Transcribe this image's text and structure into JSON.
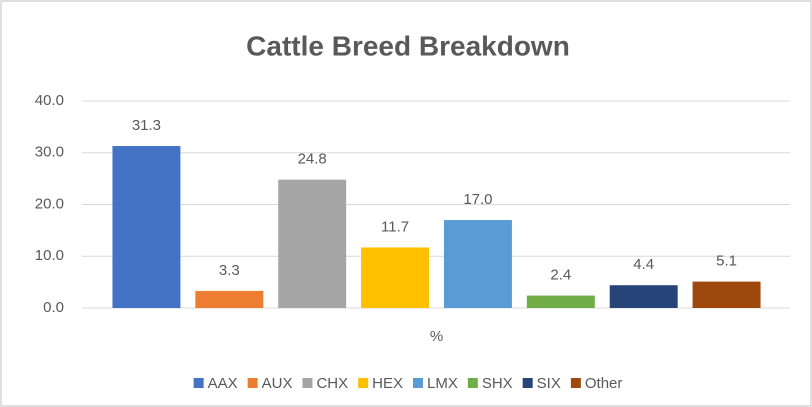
{
  "chart_data": {
    "type": "bar",
    "title": "Cattle Breed Breakdown",
    "categories": [
      "%"
    ],
    "series": [
      {
        "name": "AAX",
        "color": "#4472c4",
        "values": [
          31.3
        ]
      },
      {
        "name": "AUX",
        "color": "#ed7d31",
        "values": [
          3.3
        ]
      },
      {
        "name": "CHX",
        "color": "#a5a5a5",
        "values": [
          24.8
        ]
      },
      {
        "name": "HEX",
        "color": "#ffc000",
        "values": [
          11.7
        ]
      },
      {
        "name": "LMX",
        "color": "#5b9bd5",
        "values": [
          17.0
        ],
        "value_labels": [
          "17.0"
        ]
      },
      {
        "name": "SHX",
        "color": "#70ad47",
        "values": [
          2.4
        ]
      },
      {
        "name": "SIX",
        "color": "#264478",
        "values": [
          4.4
        ]
      },
      {
        "name": "Other",
        "color": "#9e480e",
        "values": [
          5.1
        ]
      }
    ],
    "ylim": [
      0,
      40
    ],
    "yticks": [
      {
        "value": 0,
        "label": "0.0"
      },
      {
        "value": 10,
        "label": "10.0"
      },
      {
        "value": 20,
        "label": "20.0"
      },
      {
        "value": 30,
        "label": "30.0"
      },
      {
        "value": 40,
        "label": "40.0"
      }
    ],
    "grid": true,
    "legend": "bottom"
  }
}
